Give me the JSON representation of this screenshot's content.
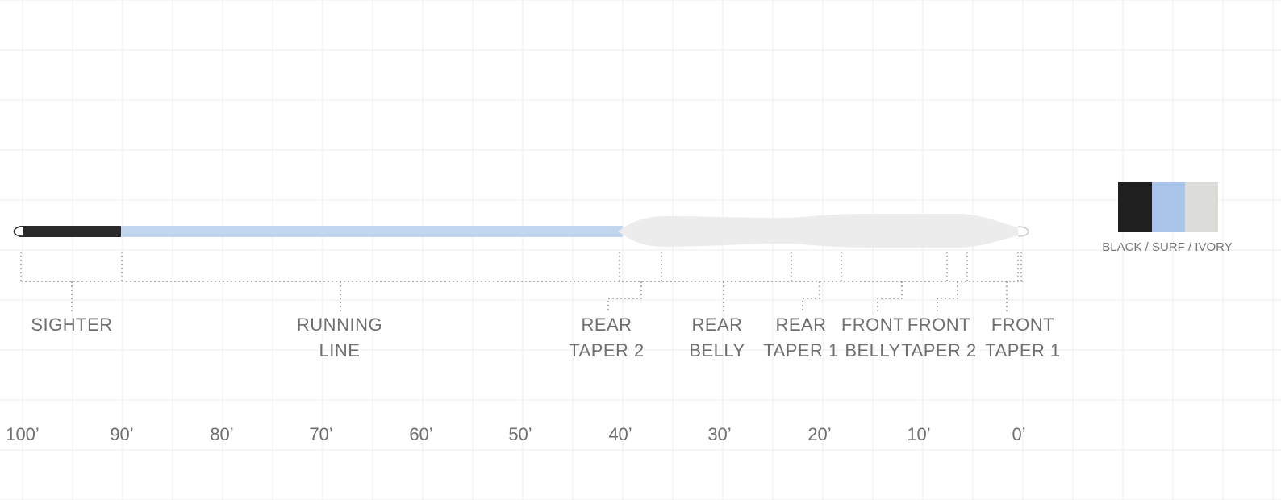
{
  "diagram": {
    "axis_ticks": [
      "100’",
      "90’",
      "80’",
      "70’",
      "60’",
      "50’",
      "40’",
      "30’",
      "20’",
      "10’",
      "0’"
    ],
    "sections": [
      {
        "id": "sighter",
        "lines": [
          "SIGHTER"
        ]
      },
      {
        "id": "running-line",
        "lines": [
          "RUNNING",
          "LINE"
        ]
      },
      {
        "id": "rear-taper-2",
        "lines": [
          "REAR",
          "TAPER 2"
        ]
      },
      {
        "id": "rear-belly",
        "lines": [
          "REAR",
          "BELLY"
        ]
      },
      {
        "id": "rear-taper-1",
        "lines": [
          "REAR",
          "TAPER 1"
        ]
      },
      {
        "id": "front-belly",
        "lines": [
          "FRONT",
          "BELLY"
        ]
      },
      {
        "id": "front-taper-2",
        "lines": [
          "FRONT",
          "TAPER 2"
        ]
      },
      {
        "id": "front-taper-1",
        "lines": [
          "FRONT",
          "TAPER 1"
        ]
      }
    ],
    "legend": {
      "label": "BLACK / SURF / IVORY",
      "swatches": [
        {
          "name": "black",
          "color": "#1e1f1e"
        },
        {
          "name": "surf",
          "color": "#a9c6ea"
        },
        {
          "name": "ivory",
          "color": "#dcdcd8"
        }
      ]
    },
    "colors": {
      "sighter": "#2a2a2a",
      "running_line": "#c2d6f0",
      "head": "#ececec",
      "grid": "#eeeeee",
      "dots": "#9a9a9a",
      "text": "#6f6f6f"
    }
  }
}
